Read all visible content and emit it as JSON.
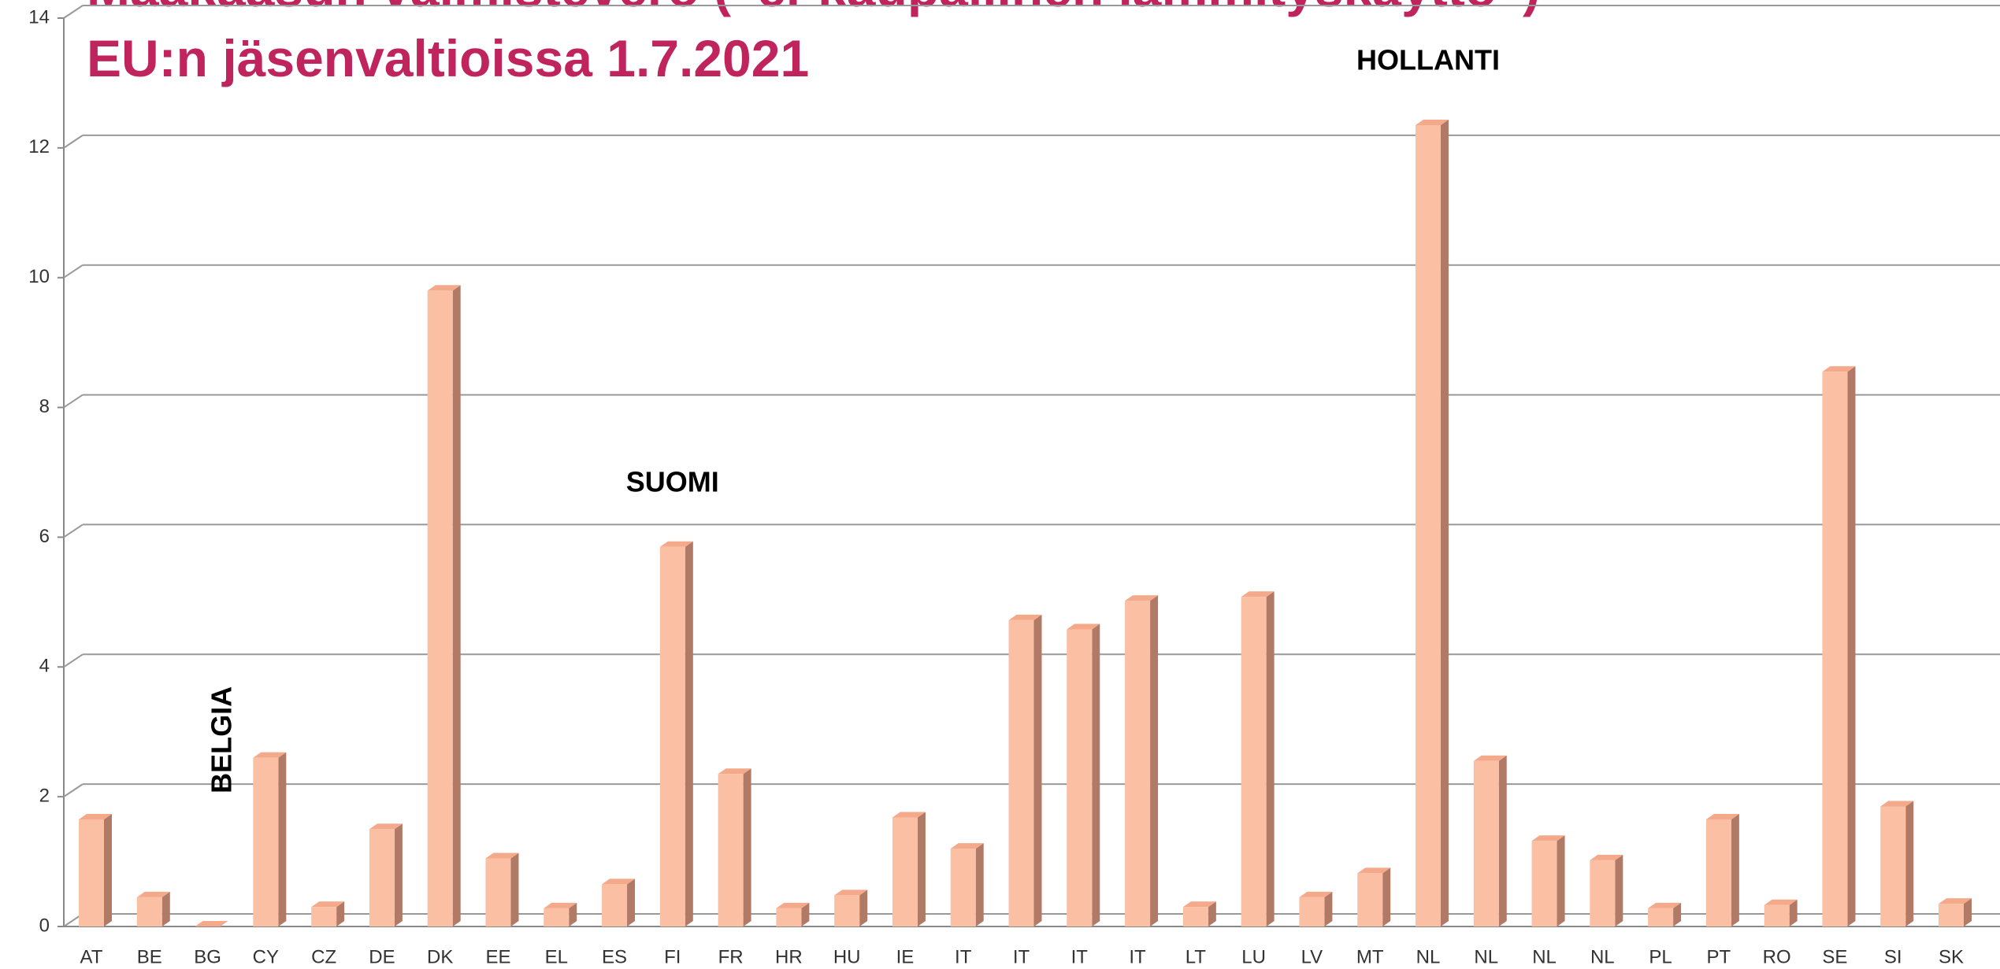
{
  "chart_data": {
    "type": "bar3d",
    "title": [
      "Maakaasun valmistevero (“ei-kaupallinen lämmityskäyttö”)",
      "EU:n jäsenvaltioissa 1.7.2021"
    ],
    "categories": [
      "AT",
      "BE",
      "BG",
      "CY",
      "CZ",
      "DE",
      "DK",
      "EE",
      "EL",
      "ES",
      "FI",
      "FR",
      "HR",
      "HU",
      "IE",
      "IT",
      "IT",
      "IT",
      "IT",
      "LT",
      "LU",
      "LV",
      "MT",
      "NL",
      "NL",
      "NL",
      "NL",
      "PL",
      "PT",
      "RO",
      "SE",
      "SI",
      "SK"
    ],
    "values": [
      1.65,
      0.45,
      0,
      2.6,
      0.3,
      1.5,
      9.8,
      1.05,
      0.28,
      0.65,
      5.85,
      2.35,
      0.28,
      0.48,
      1.68,
      1.2,
      4.72,
      4.58,
      5.02,
      0.3,
      5.08,
      0.45,
      0.82,
      12.35,
      2.55,
      1.32,
      1.02,
      0.28,
      1.65,
      0.33,
      8.55,
      1.85,
      0.35
    ],
    "color": "#fbc0a4",
    "ylim": [
      0,
      14
    ],
    "yticks": [
      0,
      2,
      4,
      6,
      8,
      10,
      12,
      14
    ],
    "grid": true,
    "annotations": [
      {
        "text": "BELGIA",
        "category": 1
      },
      {
        "text": "SUOMI",
        "category": 10
      },
      {
        "text": "HOLLANTI",
        "category": 23
      }
    ]
  }
}
